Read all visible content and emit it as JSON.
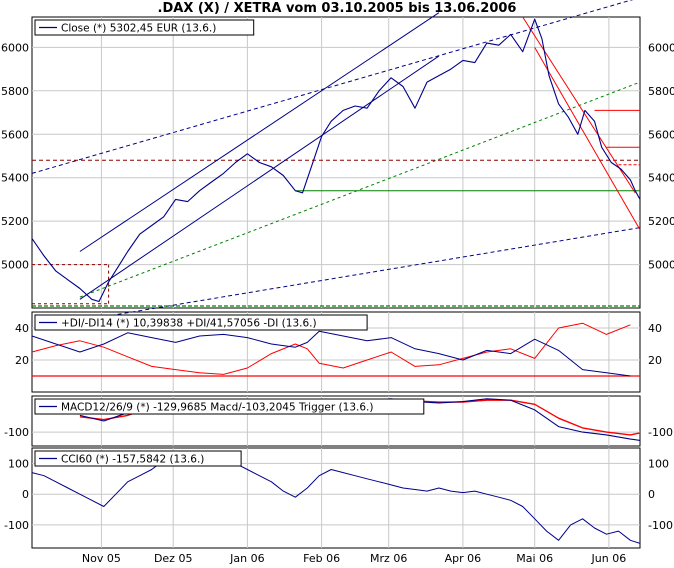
{
  "title": ".DAX (X) / XETRA vom 03.10.2005 bis 13.06.2006",
  "colors": {
    "price": "#00008b",
    "down_channel": "#ff0000",
    "support": "#008000",
    "resistance": "#8b0000",
    "di_minus": "#ff0000",
    "di_plus": "#00008b"
  },
  "x_axis": {
    "labels": [
      {
        "label": "Nov 05",
        "day": 29
      },
      {
        "label": "Dez 05",
        "day": 59
      },
      {
        "label": "Jan 06",
        "day": 90
      },
      {
        "label": "Feb 06",
        "day": 121
      },
      {
        "label": "Mrz 06",
        "day": 149
      },
      {
        "label": "Apr 06",
        "day": 180
      },
      {
        "label": "Mai 06",
        "day": 210
      },
      {
        "label": "Jun 06",
        "day": 241
      }
    ],
    "day_range": [
      0,
      254
    ]
  },
  "chart_data": [
    {
      "type": "line",
      "legend": "Close (*) 5302,45 EUR (13.6.)",
      "ylim": [
        4800,
        6140
      ],
      "yticks": [
        5000,
        5200,
        5400,
        5600,
        5800,
        6000
      ],
      "x": [
        0,
        5,
        10,
        15,
        20,
        25,
        28,
        32,
        36,
        40,
        45,
        50,
        55,
        60,
        65,
        70,
        75,
        80,
        85,
        90,
        95,
        100,
        105,
        110,
        113,
        117,
        121,
        125,
        130,
        135,
        140,
        145,
        150,
        155,
        160,
        165,
        170,
        175,
        180,
        185,
        190,
        195,
        200,
        205,
        210,
        213,
        216,
        220,
        224,
        228,
        231,
        235,
        238,
        242,
        246,
        250,
        252,
        254
      ],
      "y": [
        5120,
        5040,
        4970,
        4930,
        4890,
        4840,
        4830,
        4920,
        4990,
        5060,
        5140,
        5180,
        5220,
        5300,
        5290,
        5340,
        5380,
        5420,
        5470,
        5510,
        5470,
        5450,
        5410,
        5340,
        5330,
        5460,
        5590,
        5660,
        5710,
        5730,
        5720,
        5800,
        5860,
        5820,
        5720,
        5840,
        5870,
        5900,
        5940,
        5930,
        6020,
        6010,
        6060,
        5980,
        6130,
        6040,
        5870,
        5740,
        5680,
        5600,
        5710,
        5660,
        5540,
        5470,
        5440,
        5390,
        5340,
        5300
      ],
      "channel_up": {
        "day_start": 20,
        "day_end": 170,
        "lower": [
          4840,
          5960
        ],
        "upper": [
          5060,
          6160
        ]
      },
      "trend_lines": {
        "outer_upper": {
          "days": [
            0,
            254
          ],
          "values": [
            5420,
            6230
          ]
        },
        "outer_lower": {
          "days": [
            30,
            254
          ],
          "values": [
            4760,
            5170
          ]
        },
        "median_green": {
          "days": [
            20,
            254
          ],
          "values": [
            4850,
            5840
          ]
        },
        "down_upper": {
          "days": [
            205,
            252
          ],
          "values": [
            6140,
            5330
          ]
        },
        "down_lower": {
          "days": [
            210,
            254
          ],
          "values": [
            6000,
            5160
          ]
        },
        "support_green": {
          "days": [
            110,
            254
          ],
          "values": [
            5340,
            5340
          ]
        },
        "resistance_mid": {
          "days": [
            0,
            254
          ],
          "values": [
            5480,
            5480
          ]
        },
        "box_top": {
          "days": [
            0,
            32
          ],
          "values": [
            5000,
            5000
          ]
        },
        "box_bottom": {
          "days": [
            0,
            32
          ],
          "values": [
            4820,
            4820
          ]
        },
        "short_red_1": {
          "days": [
            235,
            254
          ],
          "values": [
            5710,
            5710
          ]
        },
        "short_red_2": {
          "days": [
            240,
            254
          ],
          "values": [
            5540,
            5540
          ]
        },
        "short_red_3": {
          "days": [
            245,
            254
          ],
          "values": [
            5460,
            5460
          ]
        }
      }
    },
    {
      "type": "line",
      "legend": "+DI/-DI14 (*) 10,39838 +DI/41,57056 -DI (13.6.)",
      "ylim": [
        0,
        50
      ],
      "yticks": [
        20,
        40
      ],
      "series": [
        {
          "name": "+DI",
          "x": [
            0,
            10,
            20,
            30,
            40,
            50,
            60,
            70,
            80,
            90,
            100,
            110,
            115,
            120,
            130,
            140,
            150,
            160,
            170,
            180,
            190,
            200,
            210,
            220,
            230,
            240,
            250
          ],
          "y": [
            35,
            30,
            25,
            30,
            37,
            34,
            31,
            35,
            36,
            34,
            30,
            28,
            31,
            38,
            35,
            32,
            34,
            27,
            24,
            20,
            26,
            24,
            33,
            26,
            14,
            12,
            10
          ]
        },
        {
          "name": "-DI",
          "x": [
            0,
            10,
            20,
            30,
            40,
            50,
            60,
            70,
            80,
            90,
            100,
            110,
            115,
            120,
            130,
            140,
            150,
            160,
            170,
            180,
            190,
            200,
            210,
            220,
            230,
            240,
            250
          ],
          "y": [
            25,
            29,
            32,
            28,
            22,
            16,
            14,
            12,
            11,
            15,
            24,
            30,
            27,
            18,
            15,
            20,
            25,
            16,
            17,
            21,
            25,
            27,
            21,
            40,
            43,
            36,
            42
          ]
        }
      ],
      "adx_line": 10
    },
    {
      "type": "line",
      "legend": "MACD12/26/9 (*) -129,9685 Macd/-103,2045 Trigger (13.6.)",
      "ylim": [
        -150,
        30
      ],
      "yticks": [
        -100
      ],
      "series": [
        {
          "name": "Macd",
          "x": [
            20,
            30,
            40,
            50,
            60,
            70,
            80,
            90,
            100,
            110,
            120,
            130,
            140,
            150,
            160,
            170,
            180,
            190,
            200,
            210,
            220,
            230,
            240,
            250,
            254
          ],
          "y": [
            -40,
            -60,
            -30,
            0,
            5,
            10,
            15,
            10,
            -10,
            -20,
            0,
            10,
            15,
            20,
            10,
            5,
            10,
            20,
            15,
            -20,
            -80,
            -100,
            -110,
            -125,
            -130
          ]
        },
        {
          "name": "Trigger",
          "x": [
            20,
            30,
            40,
            50,
            60,
            70,
            80,
            90,
            100,
            110,
            120,
            130,
            140,
            150,
            160,
            170,
            180,
            190,
            200,
            210,
            220,
            230,
            240,
            250,
            254
          ],
          "y": [
            -45,
            -55,
            -40,
            -10,
            0,
            5,
            12,
            12,
            0,
            -15,
            -5,
            5,
            12,
            18,
            12,
            8,
            8,
            15,
            15,
            0,
            -50,
            -85,
            -100,
            -110,
            -103
          ]
        }
      ]
    },
    {
      "type": "line",
      "legend": "CCI60 (*) -157,5842 (13.6.)",
      "ylim": [
        -175,
        150
      ],
      "yticks": [
        -100,
        0,
        100
      ],
      "x": [
        0,
        5,
        10,
        15,
        20,
        25,
        30,
        35,
        40,
        45,
        50,
        55,
        60,
        65,
        70,
        75,
        80,
        85,
        90,
        95,
        100,
        105,
        110,
        115,
        120,
        125,
        130,
        135,
        140,
        145,
        150,
        155,
        160,
        165,
        170,
        175,
        180,
        185,
        190,
        195,
        200,
        205,
        210,
        215,
        220,
        225,
        230,
        235,
        240,
        245,
        250,
        254
      ],
      "y": [
        70,
        60,
        40,
        20,
        0,
        -20,
        -40,
        0,
        40,
        60,
        80,
        110,
        120,
        130,
        125,
        120,
        110,
        100,
        80,
        60,
        40,
        10,
        -10,
        20,
        60,
        80,
        70,
        60,
        50,
        40,
        30,
        20,
        15,
        10,
        20,
        10,
        5,
        10,
        0,
        -10,
        -20,
        -40,
        -80,
        -120,
        -150,
        -100,
        -80,
        -110,
        -130,
        -120,
        -150,
        -160
      ]
    }
  ]
}
